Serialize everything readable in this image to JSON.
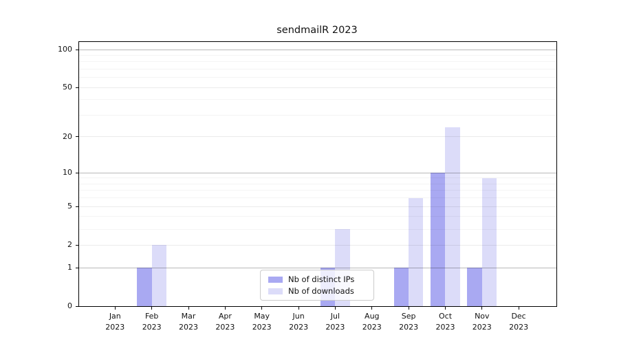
{
  "chart_data": {
    "type": "bar",
    "title": "sendmailR 2023",
    "categories": [
      "Jan",
      "Feb",
      "Mar",
      "Apr",
      "May",
      "Jun",
      "Jul",
      "Aug",
      "Sep",
      "Oct",
      "Nov",
      "Dec"
    ],
    "category_year": "2023",
    "series": [
      {
        "name": "Nb of distinct IPs",
        "color": "#a9a9f2",
        "values": [
          0,
          1,
          0,
          0,
          0,
          0,
          1,
          0,
          1,
          10,
          1,
          0
        ]
      },
      {
        "name": "Nb of downloads",
        "color": "#dcdcf9",
        "values": [
          0,
          2,
          0,
          0,
          0,
          0,
          3,
          0,
          6,
          24,
          9,
          0
        ]
      }
    ],
    "y_ticks": [
      0,
      1,
      2,
      5,
      10,
      20,
      50,
      100
    ],
    "y_scale": "log10(1+value)",
    "ylim": [
      0,
      115
    ],
    "grid": {
      "major": [
        1,
        10,
        100
      ],
      "mid": [
        2,
        5,
        20,
        50
      ],
      "minor": [
        3,
        4,
        6,
        7,
        8,
        9,
        30,
        40,
        60,
        70,
        80,
        90
      ]
    },
    "legend_position": "lower center inside"
  }
}
